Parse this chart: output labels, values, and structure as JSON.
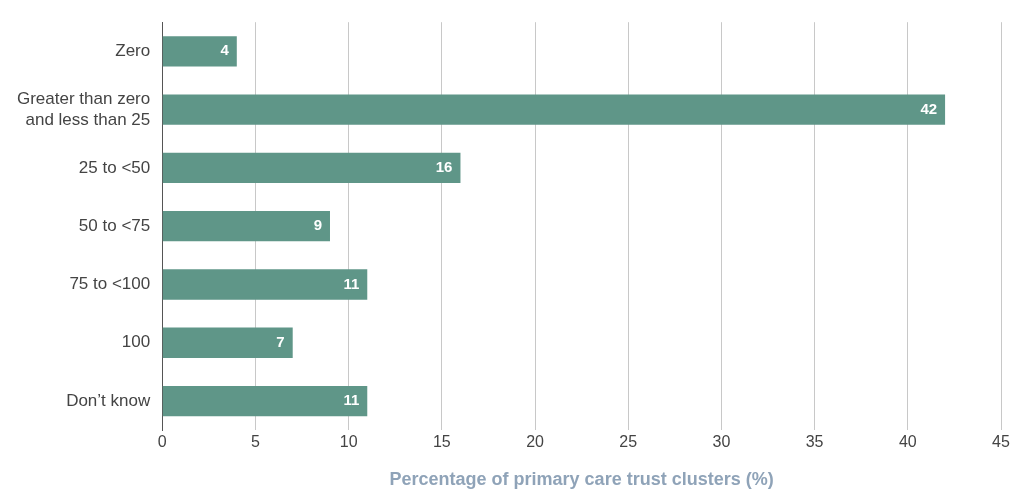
{
  "chart_data": {
    "type": "bar",
    "orientation": "horizontal",
    "xlabel": "Percentage of primary care trust clusters (%)",
    "categories": [
      "Zero",
      "Greater than zero and less than 25",
      "25 to <50",
      "50 to <75",
      "75 to <100",
      "100",
      "Don’t know"
    ],
    "values": [
      4,
      42,
      16,
      9,
      11,
      7,
      11
    ],
    "color": "#5f9688",
    "xlim": [
      0,
      45
    ],
    "xticks": [
      0,
      5,
      10,
      15,
      20,
      25,
      30,
      35,
      40,
      45
    ],
    "grid": "x",
    "data_labels": true
  }
}
